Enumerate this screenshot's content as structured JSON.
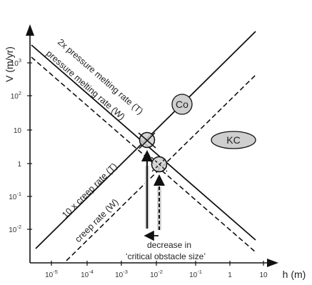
{
  "axes": {
    "x_label": "h (m)",
    "y_label": "V (m/yr)",
    "x_ticks": [
      {
        "base": "10",
        "exp": "-5"
      },
      {
        "base": "10",
        "exp": "-4"
      },
      {
        "base": "10",
        "exp": "-3"
      },
      {
        "base": "10",
        "exp": "-2"
      },
      {
        "base": "10",
        "exp": "-1"
      },
      {
        "base": "1",
        "exp": ""
      },
      {
        "base": "10",
        "exp": ""
      }
    ],
    "y_ticks": [
      {
        "base": "10",
        "exp": "3"
      },
      {
        "base": "10",
        "exp": "2"
      },
      {
        "base": "10",
        "exp": ""
      },
      {
        "base": "1",
        "exp": ""
      },
      {
        "base": "10",
        "exp": "-1"
      },
      {
        "base": "10",
        "exp": "-2"
      }
    ]
  },
  "lines": {
    "pressure_melting_t": "2x pressure melting rate (T)",
    "pressure_melting_w": "pressure melting rate (W)",
    "creep_t": "10 x creep rate (T)",
    "creep_w": "creep rate (W)"
  },
  "regions": {
    "co": "Co",
    "kc": "KC"
  },
  "annotation": {
    "line1": "decrease in",
    "line2": "‘critical obstacle size’"
  }
}
